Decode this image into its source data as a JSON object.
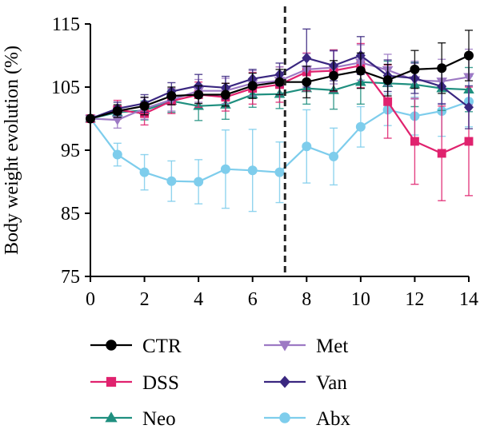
{
  "chart_data": {
    "type": "line",
    "title": "",
    "xlabel": "",
    "ylabel": "Body weight evolution (%)",
    "xlim": [
      0,
      14
    ],
    "ylim": [
      75,
      115
    ],
    "x_ticks": [
      0,
      2,
      4,
      6,
      8,
      10,
      12,
      14
    ],
    "x_tick_labels": [
      "0",
      "2",
      "4",
      "6",
      "8",
      "10",
      "12",
      "14"
    ],
    "y_ticks": [
      75,
      85,
      95,
      105,
      115
    ],
    "y_tick_labels": [
      "75",
      "85",
      "95",
      "105",
      "115"
    ],
    "vline_x": 7.2,
    "vline_style": "dashed",
    "grid": false,
    "legend_position": "bottom",
    "x": [
      0,
      1,
      2,
      3,
      4,
      5,
      6,
      7,
      8,
      9,
      10,
      11,
      12,
      13,
      14
    ],
    "series": [
      {
        "name": "Abx",
        "color": "#7ecdec",
        "marker": "circle",
        "values": [
          100,
          94.3,
          91.5,
          90.1,
          90,
          92,
          91.8,
          91.5,
          95.6,
          94,
          98.7,
          101.4,
          100.4,
          101.2,
          102.7
        ],
        "errors": [
          0,
          1.8,
          2.8,
          3.2,
          3.5,
          6.2,
          6.5,
          4.8,
          5.8,
          4.5,
          3.2,
          2.5,
          3,
          4,
          4
        ]
      },
      {
        "name": "Neo",
        "color": "#1f8f7f",
        "marker": "triangle",
        "values": [
          100,
          101,
          101.3,
          102.8,
          102,
          102.2,
          103.8,
          103.9,
          104.8,
          104.5,
          105.8,
          105.6,
          105.4,
          104.8,
          104.6
        ],
        "errors": [
          0,
          1,
          1.5,
          1.8,
          2.3,
          2.3,
          2,
          2.3,
          2.5,
          3,
          3.5,
          3.5,
          3.5,
          3.5,
          3.5
        ]
      },
      {
        "name": "DSS",
        "color": "#e0226e",
        "marker": "square",
        "values": [
          100,
          101.4,
          100.8,
          102.8,
          103.8,
          103.4,
          104.8,
          105.4,
          107.4,
          107.6,
          108.4,
          102.7,
          96.4,
          94.5,
          96.4
        ],
        "errors": [
          0,
          1.5,
          1.8,
          2,
          2,
          2.2,
          2.5,
          2.8,
          3,
          3.3,
          3.5,
          5.8,
          6.8,
          7.5,
          8.6
        ]
      },
      {
        "name": "Met",
        "color": "#9d79c4",
        "marker": "triangle-down",
        "values": [
          100,
          99.8,
          101.6,
          103,
          104.4,
          104.4,
          105.6,
          106,
          107.8,
          108.1,
          108.9,
          107.7,
          106.1,
          105.9,
          106.6
        ],
        "errors": [
          0,
          1.3,
          1.7,
          1.8,
          1.8,
          2,
          2,
          2.2,
          2.5,
          2.6,
          2.8,
          2.5,
          3,
          3.5,
          4.4
        ]
      },
      {
        "name": "Van",
        "color": "#3a2780",
        "marker": "diamond",
        "values": [
          100,
          101.6,
          102.4,
          104.3,
          105.2,
          104.9,
          106.3,
          107,
          109.6,
          108.4,
          110,
          106.8,
          106.4,
          105.1,
          101.8
        ],
        "errors": [
          0,
          1,
          1.4,
          1.4,
          1.8,
          1.8,
          1.5,
          1.8,
          4.6,
          2.4,
          3,
          2.5,
          2.4,
          2.8,
          3.4
        ]
      },
      {
        "name": "CTR",
        "color": "#000000",
        "marker": "circle",
        "values": [
          100,
          101.2,
          102,
          103.6,
          103.8,
          103.8,
          105.2,
          105.8,
          105.8,
          106.8,
          107.6,
          106.1,
          107.8,
          108,
          110
        ],
        "errors": [
          0,
          1,
          1.4,
          1.4,
          1.4,
          1.8,
          2,
          2,
          2.5,
          2.4,
          2.8,
          2.5,
          3,
          4,
          4
        ]
      }
    ],
    "legend": [
      {
        "name": "CTR",
        "color": "#000000",
        "marker": "circle"
      },
      {
        "name": "Met",
        "color": "#9d79c4",
        "marker": "triangle-down"
      },
      {
        "name": "DSS",
        "color": "#e0226e",
        "marker": "square"
      },
      {
        "name": "Van",
        "color": "#3a2780",
        "marker": "diamond"
      },
      {
        "name": "Neo",
        "color": "#1f8f7f",
        "marker": "triangle"
      },
      {
        "name": "Abx",
        "color": "#7ecdec",
        "marker": "circle"
      }
    ]
  }
}
